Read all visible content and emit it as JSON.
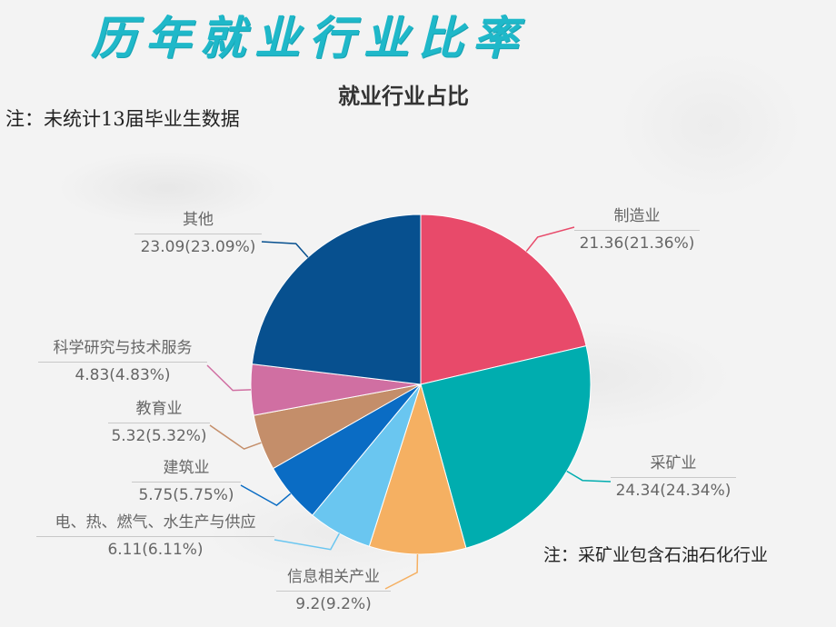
{
  "page": {
    "title": "历年就业行业比率",
    "note_top": "注：未统计13届毕业生数据",
    "note_bottom": "注：采矿业包含石油石化行业"
  },
  "chart_data": {
    "type": "pie",
    "title": "就业行业占比",
    "start_angle": "12 o'clock, clockwise",
    "categories": [
      "制造业",
      "采矿业",
      "信息相关产业",
      "电、热、燃气、水生产与供应",
      "建筑业",
      "教育业",
      "科学研究与技术服务",
      "其他"
    ],
    "values": [
      21.36,
      24.34,
      9.2,
      6.11,
      5.75,
      5.32,
      4.83,
      23.09
    ],
    "percentages": [
      21.36,
      24.34,
      9.2,
      6.11,
      5.75,
      5.32,
      4.83,
      23.09
    ],
    "colors": [
      "#e84a6a",
      "#00adaf",
      "#f5b062",
      "#6ac6f0",
      "#0a6cc4",
      "#c48e6a",
      "#d06fa2",
      "#07508f"
    ],
    "value_labels": [
      "21.36(21.36%)",
      "24.34(24.34%)",
      "9.2(9.2%)",
      "6.11(6.11%)",
      "5.75(5.75%)",
      "5.32(5.32%)",
      "4.83(4.83%)",
      "23.09(23.09%)"
    ],
    "legend": "none (labels with leader lines)"
  }
}
